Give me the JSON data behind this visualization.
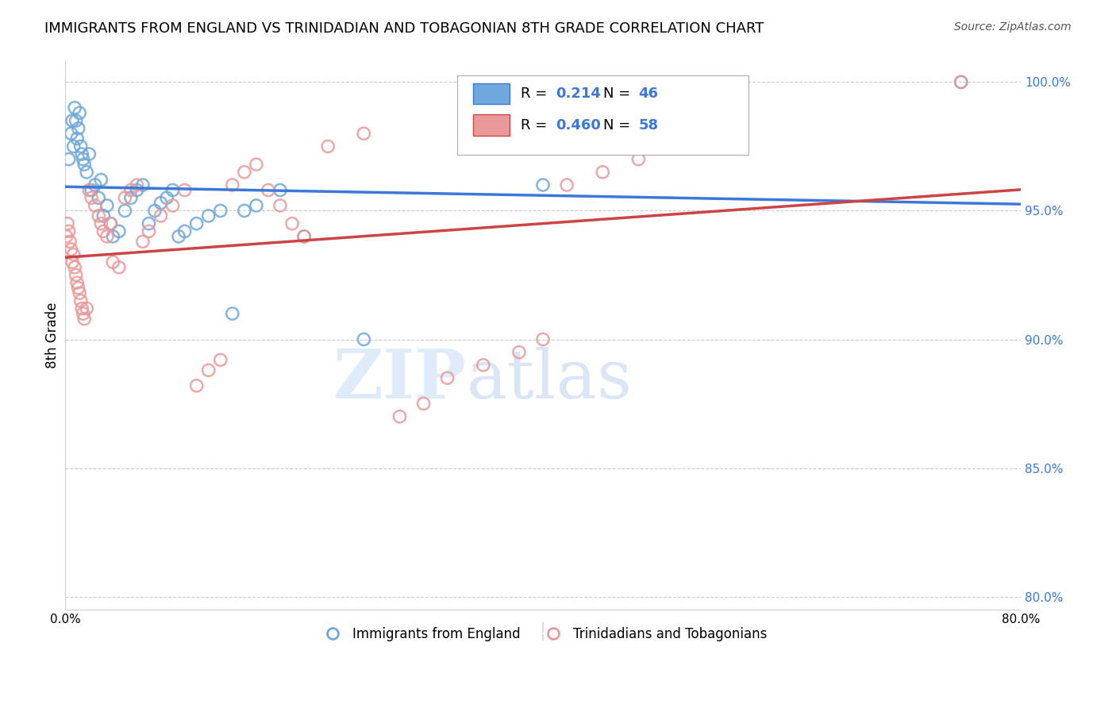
{
  "title": "IMMIGRANTS FROM ENGLAND VS TRINIDADIAN AND TOBAGONIAN 8TH GRADE CORRELATION CHART",
  "source": "Source: ZipAtlas.com",
  "xlabel": "",
  "ylabel": "8th Grade",
  "xlim": [
    0.0,
    0.8
  ],
  "ylim": [
    0.795,
    1.008
  ],
  "xticks": [
    0.0,
    0.1,
    0.2,
    0.3,
    0.4,
    0.5,
    0.6,
    0.7,
    0.8
  ],
  "xticklabels": [
    "0.0%",
    "",
    "",
    "",
    "",
    "",
    "",
    "",
    "80.0%"
  ],
  "yticks_right": [
    0.8,
    0.85,
    0.9,
    0.95,
    1.0
  ],
  "yticklabels_right": [
    "80.0%",
    "85.0%",
    "90.0%",
    "95.0%",
    "100.0%"
  ],
  "blue_color": "#6fa8dc",
  "pink_color": "#ea9999",
  "blue_line_color": "#3c78d8",
  "pink_line_color": "#cc4444",
  "legend_R_blue": "0.214",
  "legend_N_blue": "46",
  "legend_R_pink": "0.460",
  "legend_N_pink": "58",
  "legend_label_blue": "Immigrants from England",
  "legend_label_pink": "Trinidadians and Tobagonians",
  "watermark_zip": "ZIP",
  "watermark_atlas": "atlas",
  "blue_x": [
    0.003,
    0.005,
    0.006,
    0.007,
    0.008,
    0.009,
    0.01,
    0.011,
    0.012,
    0.013,
    0.014,
    0.015,
    0.016,
    0.018,
    0.02,
    0.022,
    0.025,
    0.028,
    0.03,
    0.032,
    0.035,
    0.038,
    0.04,
    0.045,
    0.05,
    0.055,
    0.06,
    0.065,
    0.07,
    0.075,
    0.08,
    0.085,
    0.09,
    0.095,
    0.1,
    0.11,
    0.12,
    0.13,
    0.14,
    0.15,
    0.16,
    0.18,
    0.2,
    0.25,
    0.4,
    0.75
  ],
  "blue_y": [
    0.97,
    0.98,
    0.985,
    0.975,
    0.99,
    0.985,
    0.978,
    0.982,
    0.988,
    0.975,
    0.972,
    0.97,
    0.968,
    0.965,
    0.972,
    0.958,
    0.96,
    0.955,
    0.962,
    0.948,
    0.952,
    0.945,
    0.94,
    0.942,
    0.95,
    0.955,
    0.958,
    0.96,
    0.945,
    0.95,
    0.953,
    0.955,
    0.958,
    0.94,
    0.942,
    0.945,
    0.948,
    0.95,
    0.91,
    0.95,
    0.952,
    0.958,
    0.94,
    0.9,
    0.96,
    1.0
  ],
  "pink_x": [
    0.001,
    0.002,
    0.003,
    0.004,
    0.005,
    0.006,
    0.007,
    0.008,
    0.009,
    0.01,
    0.011,
    0.012,
    0.013,
    0.014,
    0.015,
    0.016,
    0.018,
    0.02,
    0.022,
    0.025,
    0.028,
    0.03,
    0.032,
    0.035,
    0.038,
    0.04,
    0.045,
    0.05,
    0.055,
    0.06,
    0.065,
    0.07,
    0.08,
    0.09,
    0.1,
    0.11,
    0.12,
    0.13,
    0.14,
    0.15,
    0.16,
    0.17,
    0.18,
    0.19,
    0.2,
    0.22,
    0.25,
    0.28,
    0.3,
    0.32,
    0.35,
    0.38,
    0.4,
    0.42,
    0.45,
    0.48,
    0.5,
    0.75
  ],
  "pink_y": [
    0.94,
    0.945,
    0.942,
    0.938,
    0.935,
    0.93,
    0.933,
    0.928,
    0.925,
    0.922,
    0.92,
    0.918,
    0.915,
    0.912,
    0.91,
    0.908,
    0.912,
    0.958,
    0.955,
    0.952,
    0.948,
    0.945,
    0.942,
    0.94,
    0.945,
    0.93,
    0.928,
    0.955,
    0.958,
    0.96,
    0.938,
    0.942,
    0.948,
    0.952,
    0.958,
    0.882,
    0.888,
    0.892,
    0.96,
    0.965,
    0.968,
    0.958,
    0.952,
    0.945,
    0.94,
    0.975,
    0.98,
    0.87,
    0.875,
    0.885,
    0.89,
    0.895,
    0.9,
    0.96,
    0.965,
    0.97,
    0.998,
    1.0
  ]
}
